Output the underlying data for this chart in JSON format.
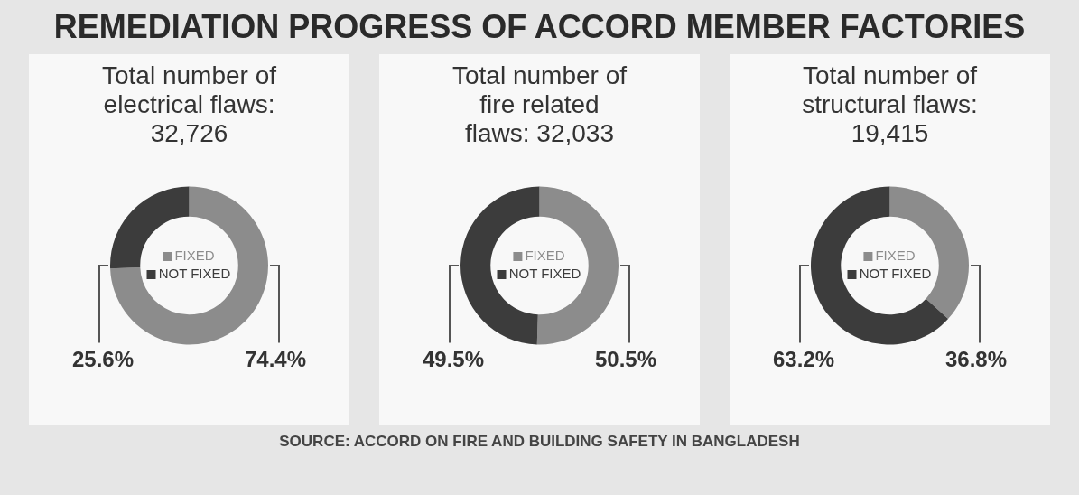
{
  "chart_data": [
    {
      "type": "donut",
      "title": "REMEDIATION PROGRESS OF ACCORD MEMBER FACTORIES",
      "subtitle": "Total number of electrical flaws: 32,726",
      "categories": [
        "FIXED",
        "NOT FIXED"
      ],
      "values": [
        74.4,
        25.6
      ],
      "legend": "center",
      "colors": [
        "#8c8c8c",
        "#3c3c3c"
      ],
      "value_labels": [
        "74.4%",
        "25.6%"
      ]
    },
    {
      "type": "donut",
      "subtitle": "Total number of fire related flaws: 32,033",
      "categories": [
        "FIXED",
        "NOT FIXED"
      ],
      "values": [
        50.5,
        49.5
      ],
      "legend": "center",
      "colors": [
        "#8c8c8c",
        "#3c3c3c"
      ],
      "value_labels": [
        "50.5%",
        "49.5%"
      ]
    },
    {
      "type": "donut",
      "subtitle": "Total number of structural flaws: 19,415",
      "categories": [
        "FIXED",
        "NOT FIXED"
      ],
      "values": [
        36.8,
        63.2
      ],
      "legend": "center",
      "colors": [
        "#8c8c8c",
        "#3c3c3c"
      ],
      "value_labels": [
        "36.8%",
        "63.2%"
      ],
      "annotations": [
        "SOURCE: ACCORD ON FIRE AND BUILDING SAFETY IN BANGLADESH"
      ]
    }
  ]
}
